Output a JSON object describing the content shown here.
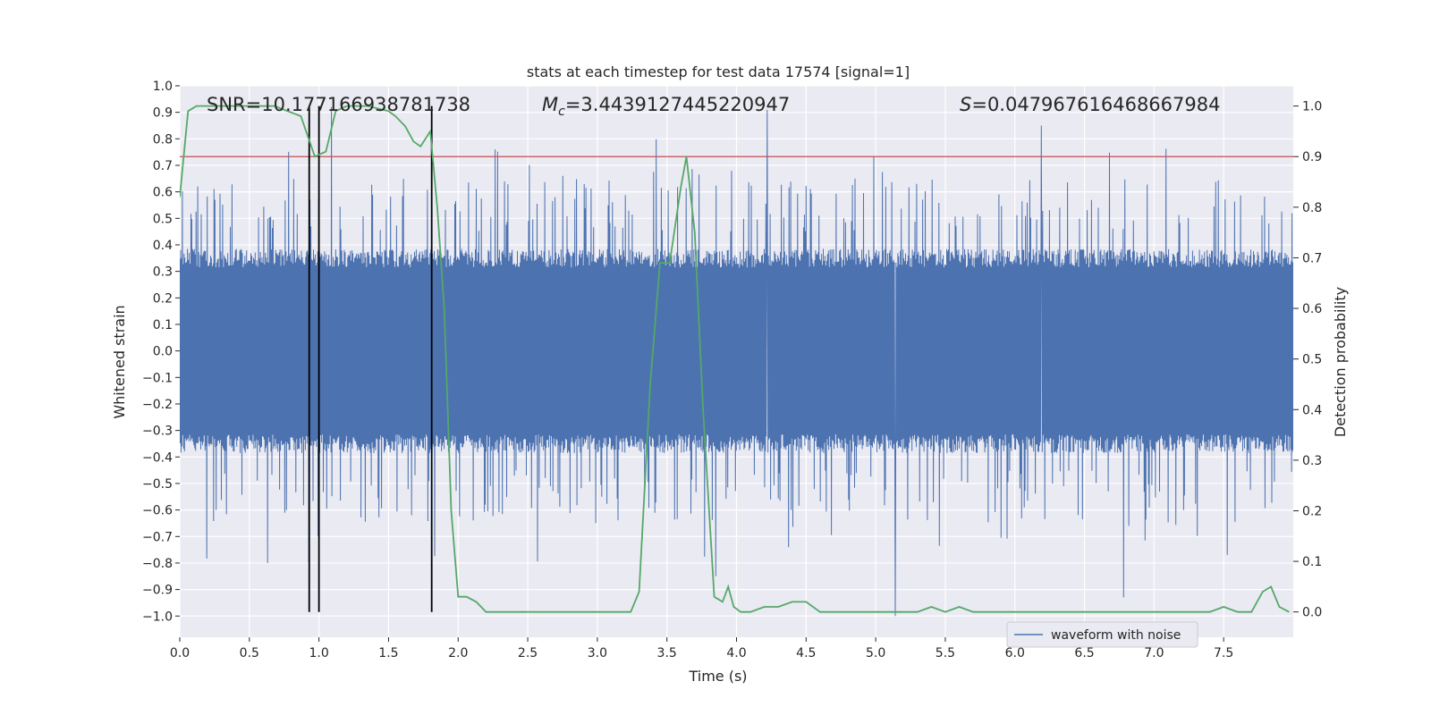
{
  "chart_data": {
    "type": "line",
    "title": "stats at each timestep for test data 17574 [signal=1]",
    "xlabel": "Time (s)",
    "ylabel_left": "Whitened strain",
    "ylabel_right": "Detection probability",
    "xlim": [
      0,
      8
    ],
    "ylim_left": [
      -1.08,
      1.0
    ],
    "ylim_right": [
      -0.05,
      1.04
    ],
    "x_ticks": [
      0.0,
      0.5,
      1.0,
      1.5,
      2.0,
      2.5,
      3.0,
      3.5,
      4.0,
      4.5,
      5.0,
      5.5,
      6.0,
      6.5,
      7.0,
      7.5
    ],
    "x_tick_labels": [
      "0.0",
      "0.5",
      "1.0",
      "1.5",
      "2.0",
      "2.5",
      "3.0",
      "3.5",
      "4.0",
      "4.5",
      "5.0",
      "5.5",
      "6.0",
      "6.5",
      "7.0",
      "7.5"
    ],
    "y_left_ticks": [
      1.0,
      0.9,
      0.8,
      0.7,
      0.6,
      0.5,
      0.4,
      0.3,
      0.2,
      0.1,
      0.0,
      -0.1,
      -0.2,
      -0.3,
      -0.4,
      -0.5,
      -0.6,
      -0.7,
      -0.8,
      -0.9,
      -1.0
    ],
    "y_left_tick_labels": [
      "1.0",
      "0.9",
      "0.8",
      "0.7",
      "0.6",
      "0.5",
      "0.4",
      "0.3",
      "0.2",
      "0.1",
      "0.0",
      "−0.1",
      "−0.2",
      "−0.3",
      "−0.4",
      "−0.5",
      "−0.6",
      "−0.7",
      "−0.8",
      "−0.9",
      "−1.0"
    ],
    "y_right_ticks": [
      1.0,
      0.9,
      0.8,
      0.7,
      0.6,
      0.5,
      0.4,
      0.3,
      0.2,
      0.1,
      0.0
    ],
    "y_right_tick_labels": [
      "1.0",
      "0.9",
      "0.8",
      "0.7",
      "0.6",
      "0.5",
      "0.4",
      "0.3",
      "0.2",
      "0.1",
      "0.0"
    ],
    "annotations": {
      "snr": "SNR=10.177166938781738",
      "mc_symbol": "M",
      "mc_sub": "c",
      "mc_value": "=3.4439127445220947",
      "s_symbol": "S",
      "s_value": "=0.047967616468667984"
    },
    "threshold": {
      "value": 0.9,
      "axis": "right",
      "color": "#c44e52"
    },
    "vertical_lines": {
      "x": [
        0.93,
        1.0,
        1.81
      ],
      "color": "#000000"
    },
    "waveform": {
      "name": "waveform with noise",
      "color": "#4c72b0",
      "x_range": [
        0.0,
        8.0
      ],
      "core_amplitude": 0.35,
      "typical_peak_range": [
        0.45,
        0.65
      ],
      "max": 0.92,
      "min": -1.0,
      "notable_spikes": [
        {
          "x": 1.09,
          "y": 0.92
        },
        {
          "x": 4.22,
          "y": 0.91
        },
        {
          "x": 6.19,
          "y": 0.85
        },
        {
          "x": 5.14,
          "y": -1.0
        },
        {
          "x": 6.78,
          "y": -0.93
        },
        {
          "x": 0.63,
          "y": -0.8
        },
        {
          "x": 3.85,
          "y": -0.85
        }
      ]
    },
    "detection_probability": {
      "color": "#55a868",
      "axis": "right",
      "x": [
        0.0,
        0.06,
        0.12,
        0.3,
        0.5,
        0.68,
        0.87,
        0.97,
        1.05,
        1.12,
        1.2,
        1.35,
        1.5,
        1.55,
        1.62,
        1.68,
        1.73,
        1.8,
        1.85,
        1.9,
        1.95,
        2.0,
        2.06,
        2.13,
        2.2,
        2.3,
        2.4,
        2.6,
        2.8,
        3.0,
        3.1,
        3.24,
        3.3,
        3.38,
        3.45,
        3.52,
        3.6,
        3.64,
        3.7,
        3.76,
        3.84,
        3.9,
        3.94,
        3.98,
        4.03,
        4.1,
        4.2,
        4.3,
        4.4,
        4.5,
        4.6,
        4.7,
        4.8,
        4.9,
        5.0,
        5.1,
        5.2,
        5.3,
        5.4,
        5.5,
        5.6,
        5.7,
        5.8,
        6.0,
        6.5,
        6.8,
        7.0,
        7.2,
        7.4,
        7.5,
        7.6,
        7.7,
        7.78,
        7.84,
        7.9,
        7.97
      ],
      "y": [
        0.82,
        0.99,
        1.0,
        1.0,
        1.0,
        1.0,
        0.98,
        0.9,
        0.91,
        0.99,
        1.0,
        1.0,
        0.99,
        0.98,
        0.96,
        0.93,
        0.92,
        0.95,
        0.8,
        0.6,
        0.2,
        0.03,
        0.03,
        0.02,
        0.0,
        0.0,
        0.0,
        0.0,
        0.0,
        0.0,
        0.0,
        0.0,
        0.04,
        0.45,
        0.69,
        0.69,
        0.84,
        0.9,
        0.75,
        0.4,
        0.03,
        0.02,
        0.05,
        0.01,
        0.0,
        0.0,
        0.01,
        0.01,
        0.02,
        0.02,
        0.0,
        0.0,
        0.0,
        0.0,
        0.0,
        0.0,
        0.0,
        0.0,
        0.01,
        0.0,
        0.01,
        0.0,
        0.0,
        0.0,
        0.0,
        0.0,
        0.0,
        0.0,
        0.0,
        0.01,
        0.0,
        0.0,
        0.04,
        0.05,
        0.01,
        0.0
      ]
    },
    "legend": {
      "label": "waveform with noise",
      "placement": "lower-right"
    },
    "grid": true,
    "background": "#eaeaf2"
  }
}
